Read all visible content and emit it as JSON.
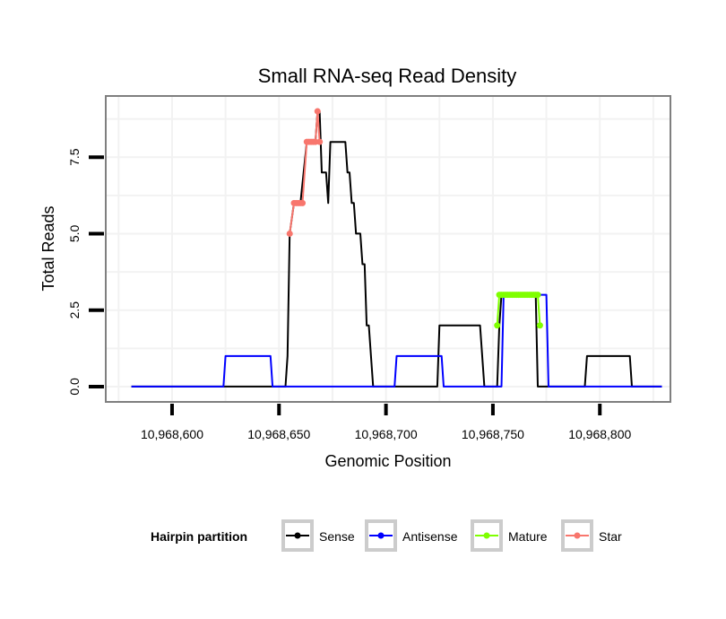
{
  "chart_data": {
    "type": "line",
    "title": "Small RNA-seq Read Density",
    "xlabel": "Genomic Position",
    "ylabel": "Total Reads",
    "xlim": [
      10968569,
      10968833
    ],
    "ylim": [
      -0.5,
      9.5
    ],
    "x_ticks": [
      10968600,
      10968650,
      10968700,
      10968750,
      10968800
    ],
    "x_tick_labels": [
      "10,968,600",
      "10,968,650",
      "10,968,700",
      "10,968,750",
      "10,968,800"
    ],
    "y_ticks": [
      0,
      2.5,
      5,
      7.5
    ],
    "y_tick_labels": [
      "0.0",
      "2.5",
      "5.0",
      "7.5"
    ],
    "grid": true,
    "legend": {
      "title": "Hairpin partition",
      "position": "bottom",
      "entries": [
        {
          "name": "Sense",
          "color": "#000000"
        },
        {
          "name": "Antisense",
          "color": "#0000ff"
        },
        {
          "name": "Mature",
          "color": "#7fff00"
        },
        {
          "name": "Star",
          "color": "#f8766d"
        }
      ]
    },
    "series": [
      {
        "name": "Sense",
        "color": "#000000",
        "markers": false,
        "points": [
          [
            10968581,
            0
          ],
          [
            10968653,
            0
          ],
          [
            10968654,
            1
          ],
          [
            10968655,
            5
          ],
          [
            10968657,
            6
          ],
          [
            10968660,
            6
          ],
          [
            10968663,
            8
          ],
          [
            10968664,
            8
          ],
          [
            10968666,
            8
          ],
          [
            10968667,
            8
          ],
          [
            10968668,
            9
          ],
          [
            10968669,
            9
          ],
          [
            10968670,
            7
          ],
          [
            10968672,
            7
          ],
          [
            10968673,
            6
          ],
          [
            10968674,
            8
          ],
          [
            10968681,
            8
          ],
          [
            10968682,
            7
          ],
          [
            10968683,
            7
          ],
          [
            10968684,
            6
          ],
          [
            10968685,
            6
          ],
          [
            10968686,
            5
          ],
          [
            10968688,
            5
          ],
          [
            10968689,
            4
          ],
          [
            10968690,
            4
          ],
          [
            10968691,
            2
          ],
          [
            10968692,
            2
          ],
          [
            10968693,
            1
          ],
          [
            10968694,
            0
          ],
          [
            10968712,
            0
          ],
          [
            10968713,
            0
          ],
          [
            10968714,
            0
          ],
          [
            10968715,
            0
          ],
          [
            10968716,
            0
          ],
          [
            10968717,
            0
          ],
          [
            10968718,
            0
          ],
          [
            10968719,
            0
          ],
          [
            10968720,
            0
          ],
          [
            10968721,
            0
          ],
          [
            10968722,
            0
          ],
          [
            10968723,
            0
          ],
          [
            10968724,
            0
          ],
          [
            10968725,
            2
          ],
          [
            10968744,
            2
          ],
          [
            10968746,
            0
          ],
          [
            10968752,
            0
          ],
          [
            10968753,
            2
          ],
          [
            10968754,
            3
          ],
          [
            10968770,
            3
          ],
          [
            10968771,
            0
          ],
          [
            10968793,
            0
          ],
          [
            10968794,
            1
          ],
          [
            10968814,
            1
          ],
          [
            10968815,
            0
          ],
          [
            10968829,
            0
          ]
        ]
      },
      {
        "name": "Antisense",
        "color": "#0000ff",
        "markers": false,
        "points": [
          [
            10968581,
            0
          ],
          [
            10968624,
            0
          ],
          [
            10968625,
            1
          ],
          [
            10968646,
            1
          ],
          [
            10968647,
            0
          ],
          [
            10968704,
            0
          ],
          [
            10968705,
            1
          ],
          [
            10968726,
            1
          ],
          [
            10968727,
            0
          ],
          [
            10968754,
            0
          ],
          [
            10968755,
            3
          ],
          [
            10968775,
            3
          ],
          [
            10968776,
            0
          ],
          [
            10968829,
            0
          ]
        ]
      },
      {
        "name": "Mature",
        "color": "#7fff00",
        "markers": true,
        "points": [
          [
            10968752,
            2
          ],
          [
            10968753,
            3
          ],
          [
            10968754,
            3
          ],
          [
            10968755,
            3
          ],
          [
            10968756,
            3
          ],
          [
            10968757,
            3
          ],
          [
            10968758,
            3
          ],
          [
            10968759,
            3
          ],
          [
            10968760,
            3
          ],
          [
            10968761,
            3
          ],
          [
            10968762,
            3
          ],
          [
            10968763,
            3
          ],
          [
            10968764,
            3
          ],
          [
            10968765,
            3
          ],
          [
            10968766,
            3
          ],
          [
            10968767,
            3
          ],
          [
            10968768,
            3
          ],
          [
            10968769,
            3
          ],
          [
            10968770,
            3
          ],
          [
            10968771,
            3
          ],
          [
            10968772,
            2
          ]
        ]
      },
      {
        "name": "Star",
        "color": "#f8766d",
        "markers": true,
        "points": [
          [
            10968655,
            5
          ],
          [
            10968657,
            6
          ],
          [
            10968658,
            6
          ],
          [
            10968659,
            6
          ],
          [
            10968660,
            6
          ],
          [
            10968661,
            6
          ],
          [
            10968663,
            8
          ],
          [
            10968664,
            8
          ],
          [
            10968665,
            8
          ],
          [
            10968666,
            8
          ],
          [
            10968667,
            8
          ],
          [
            10968668,
            9
          ],
          [
            10968669,
            8
          ]
        ]
      }
    ]
  }
}
